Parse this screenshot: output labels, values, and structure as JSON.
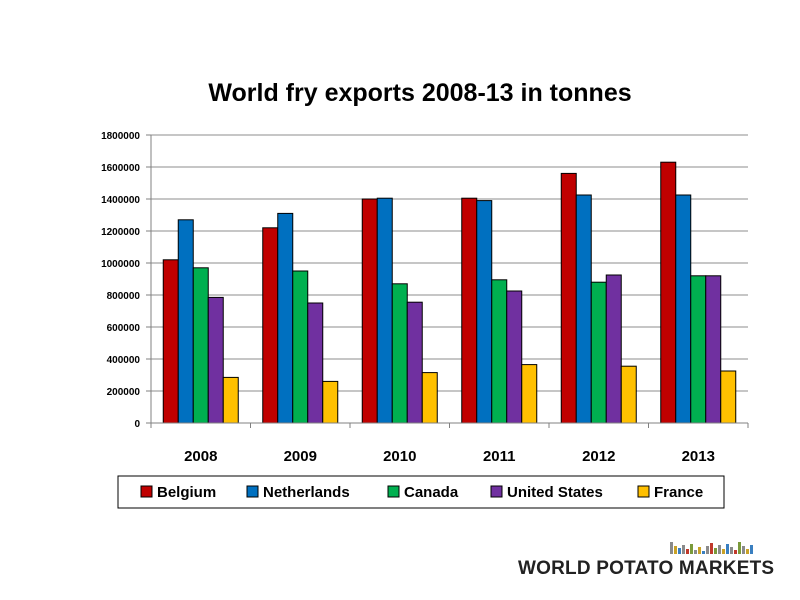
{
  "chart_data": {
    "type": "bar",
    "title": "World fry exports 2008-13 in tonnes",
    "categories": [
      "2008",
      "2009",
      "2010",
      "2011",
      "2012",
      "2013"
    ],
    "series": [
      {
        "name": "Belgium",
        "color": "#C00000",
        "values": [
          1020000,
          1220000,
          1400000,
          1405000,
          1560000,
          1630000
        ]
      },
      {
        "name": "Netherlands",
        "color": "#0070C0",
        "values": [
          1270000,
          1310000,
          1405000,
          1390000,
          1425000,
          1425000
        ]
      },
      {
        "name": "Canada",
        "color": "#00B050",
        "values": [
          970000,
          950000,
          870000,
          895000,
          880000,
          920000
        ]
      },
      {
        "name": "United States",
        "color": "#7030A0",
        "values": [
          785000,
          750000,
          755000,
          825000,
          925000,
          920000
        ]
      },
      {
        "name": "France",
        "color": "#FFC000",
        "values": [
          285000,
          260000,
          315000,
          365000,
          355000,
          325000
        ]
      }
    ],
    "ylim": [
      0,
      1800000
    ],
    "yticks": [
      "0",
      "200000",
      "400000",
      "600000",
      "800000",
      "1000000",
      "1200000",
      "1400000",
      "1600000",
      "1800000"
    ],
    "grid": true,
    "legend_position": "bottom"
  },
  "logo": {
    "text": "WORLD POTATO MARKETS"
  }
}
